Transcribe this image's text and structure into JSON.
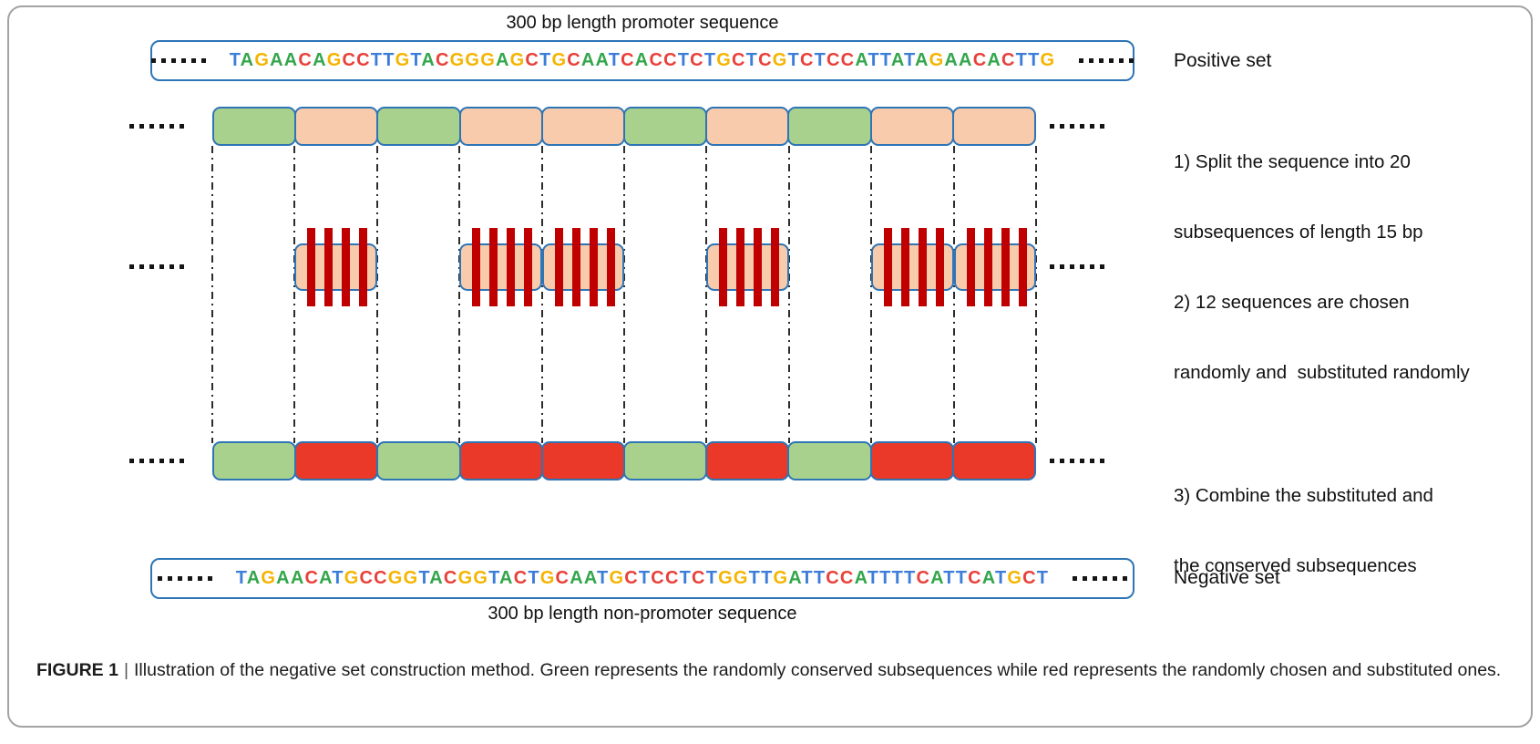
{
  "figure": {
    "top_title": "300 bp length promoter sequence",
    "bottom_title": "300 bp length non-promoter sequence",
    "ellipsis_dots": 6,
    "positive_set": {
      "label": "Positive set",
      "sequence": "TAGAACAGCCTTGTACGGGAGCTGCAATCACCTCTGCTCGTCTCCATTATAGAACACTTG"
    },
    "negative_set": {
      "label": "Negative set",
      "sequence": "TAGAACATGCCGGTACGGTACTGCAATGCTCCTCTGGTTGATTCCATTTTCATTCATGCT"
    },
    "base_colors": {
      "A": "#33A64C",
      "T": "#3C7DD9",
      "G": "#F4B400",
      "C": "#E8403A"
    },
    "box_colors": {
      "green": "#A9D18E",
      "peach": "#F8CBAD",
      "red": "#EA3829",
      "stripe": "#C00000",
      "border": "#2E75B6"
    },
    "steps": [
      {
        "line1": "1) Split the sequence into 20",
        "line2": "subsequences of length 15 bp"
      },
      {
        "line1": "2) 12 sequences are chosen",
        "line2": "randomly and  substituted randomly"
      },
      {
        "line1": "3) Combine the substituted and",
        "line2": "the conserved subsequences"
      }
    ],
    "rows": {
      "columns": 10,
      "split_pattern": [
        "green",
        "peach",
        "green",
        "peach",
        "peach",
        "green",
        "peach",
        "green",
        "peach",
        "peach"
      ],
      "substituted_positions": [
        2,
        4,
        5,
        7,
        9,
        10
      ],
      "stripes_per_box": 4,
      "combined_pattern": [
        "green",
        "red",
        "green",
        "red",
        "red",
        "green",
        "red",
        "green",
        "red",
        "red"
      ]
    },
    "caption": {
      "tag": "FIGURE 1",
      "separator": "|",
      "text": "Illustration of the negative set construction method. Green represents the randomly conserved subsequences while red represents the randomly chosen and substituted ones."
    }
  }
}
